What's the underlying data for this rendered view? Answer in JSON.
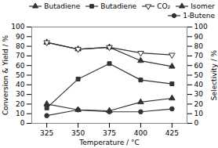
{
  "chart_data": {
    "type": "line",
    "x": [
      325,
      350,
      375,
      400,
      425
    ],
    "xlabel": "Temperature / °C",
    "ylabel": "Conversion & Yield / %",
    "y2label": "Selectivity / %",
    "xlim": [
      313,
      437
    ],
    "xticks": [
      325,
      350,
      375,
      400,
      425
    ],
    "ylim": [
      0,
      100
    ],
    "yticks": [
      0,
      10,
      20,
      30,
      40,
      50,
      60,
      70,
      80,
      90,
      100
    ],
    "y2lim": [
      0,
      100
    ],
    "y2ticks": [
      0,
      10,
      20,
      30,
      40,
      50,
      60,
      70,
      80,
      90,
      100
    ],
    "grid": false,
    "legend": "upper right",
    "series": [
      {
        "name": "Butadiene",
        "color": "#333333",
        "marker": "triangle-up",
        "values": [
          84,
          77,
          79,
          65,
          59
        ]
      },
      {
        "name": "Butadiene",
        "color": "#333333",
        "marker": "square",
        "values": [
          16,
          46,
          62,
          45,
          41
        ]
      },
      {
        "name": "CO₂",
        "color": "#333333",
        "marker": "triangle-down-open",
        "axis": "y2",
        "values": [
          84,
          77,
          79,
          73,
          71
        ]
      },
      {
        "name": "Isomer",
        "color": "#333333",
        "marker": "triangle-up",
        "axis": "y2",
        "values": [
          20,
          14,
          13,
          22,
          26
        ]
      },
      {
        "name": "1-Butene",
        "color": "#333333",
        "marker": "circle",
        "axis": "y2",
        "values": [
          8,
          14,
          12,
          12,
          15
        ]
      }
    ]
  }
}
